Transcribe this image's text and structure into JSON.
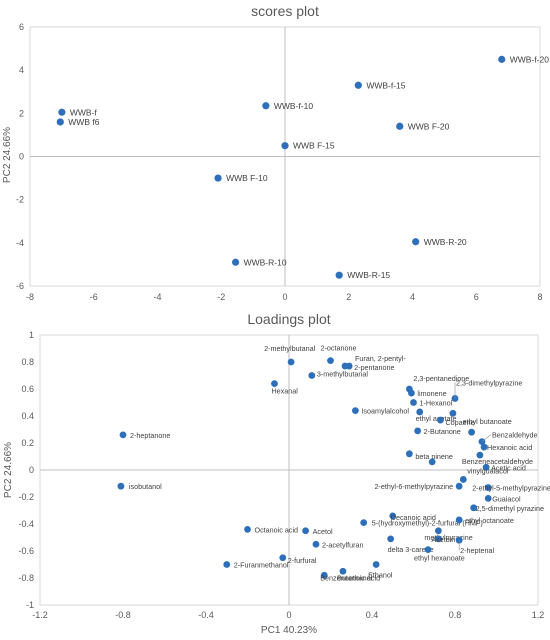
{
  "chart_data": [
    {
      "type": "scatter",
      "title": "scores plot",
      "xlabel": "",
      "ylabel": "PC2 24.66%",
      "xlim": [
        -8,
        8
      ],
      "ylim": [
        -6,
        6
      ],
      "xticks": [
        "-8",
        "-6",
        "-4",
        "-2",
        "0",
        "2",
        "4",
        "6",
        "8"
      ],
      "yticks": [
        "-6",
        "-4",
        "-2",
        "0",
        "2",
        "4",
        "6"
      ],
      "color": "#2e6fba",
      "points": [
        {
          "label": "WWB-f-20",
          "x": 6.8,
          "y": 4.5
        },
        {
          "label": "WWB-f-15",
          "x": 2.3,
          "y": 3.3
        },
        {
          "label": "WWB-f-10",
          "x": -0.6,
          "y": 2.35
        },
        {
          "label": "WWB-f",
          "x": -7.0,
          "y": 2.05
        },
        {
          "label": "WWB f6",
          "x": -7.05,
          "y": 1.6
        },
        {
          "label": "WWB F-20",
          "x": 3.6,
          "y": 1.4
        },
        {
          "label": "WWB F-15",
          "x": 0.0,
          "y": 0.5
        },
        {
          "label": "WWB F-10",
          "x": -2.1,
          "y": -1.0
        },
        {
          "label": "WWB-R-20",
          "x": 4.1,
          "y": -3.95
        },
        {
          "label": "WWB-R-10",
          "x": -1.55,
          "y": -4.9
        },
        {
          "label": "WWB-R-15",
          "x": 1.7,
          "y": -5.5
        }
      ]
    },
    {
      "type": "scatter",
      "title": "Loadings plot",
      "xlabel": "PC1 40.23%",
      "ylabel": "PC2 24.66%",
      "xlim": [
        -1.2,
        1.2
      ],
      "ylim": [
        -1,
        1
      ],
      "xticks": [
        "-1.2",
        "-0.8",
        "-0.4",
        "0",
        "0.4",
        "0.8",
        "1.2"
      ],
      "yticks": [
        "-1",
        "-0.8",
        "-0.6",
        "-0.4",
        "-0.2",
        "0",
        "0.2",
        "0.4",
        "0.6",
        "0.8",
        "1"
      ],
      "color": "#2e6fba",
      "points": [
        {
          "label": "2-methylbutanal",
          "x": 0.01,
          "y": 0.8
        },
        {
          "label": "2-octanone",
          "x": 0.2,
          "y": 0.81
        },
        {
          "label": "Furan, 2-pentyl-",
          "x": 0.27,
          "y": 0.77
        },
        {
          "label": "2-pentanone",
          "x": 0.29,
          "y": 0.77
        },
        {
          "label": "3-methylbutanal",
          "x": 0.11,
          "y": 0.7
        },
        {
          "label": "Hexanal",
          "x": -0.07,
          "y": 0.64
        },
        {
          "label": "2,3-pentanedione",
          "x": 0.58,
          "y": 0.6
        },
        {
          "label": "limonene",
          "x": 0.59,
          "y": 0.57
        },
        {
          "label": "2,3-dimethylpyrazine",
          "x": 0.8,
          "y": 0.53
        },
        {
          "label": "1-Hexanol",
          "x": 0.6,
          "y": 0.5
        },
        {
          "label": "Isoamylalcohol",
          "x": 0.32,
          "y": 0.44
        },
        {
          "label": "ethyl acetate",
          "x": 0.63,
          "y": 0.43
        },
        {
          "label": "",
          "x": 0.79,
          "y": 0.42
        },
        {
          "label": "Copaene",
          "x": 0.73,
          "y": 0.37
        },
        {
          "label": "2-Butanone",
          "x": 0.62,
          "y": 0.29
        },
        {
          "label": "ethyl butanoate",
          "x": 0.88,
          "y": 0.28
        },
        {
          "label": "2-heptanone",
          "x": -0.8,
          "y": 0.26
        },
        {
          "label": "Benzaldehyde",
          "x": 0.93,
          "y": 0.21
        },
        {
          "label": "Hexanoic acid",
          "x": 0.94,
          "y": 0.17
        },
        {
          "label": "beta pinene",
          "x": 0.58,
          "y": 0.12
        },
        {
          "label": "Benzeneacetaldehyde",
          "x": 0.92,
          "y": 0.11
        },
        {
          "label": "",
          "x": 0.69,
          "y": 0.06
        },
        {
          "label": "Acetic acid",
          "x": 0.95,
          "y": 0.02
        },
        {
          "label": "vinylguaiacol",
          "x": 0.84,
          "y": -0.07
        },
        {
          "label": "2-ethyl-6-methylpyrazine",
          "x": 0.82,
          "y": -0.12
        },
        {
          "label": "2-ethyl-5-methylpyrazine",
          "x": 0.96,
          "y": -0.13
        },
        {
          "label": "isobutanol",
          "x": -0.81,
          "y": -0.12
        },
        {
          "label": "Guaiacol",
          "x": 0.96,
          "y": -0.21
        },
        {
          "label": "2,5-dimethyl pyrazine",
          "x": 0.89,
          "y": -0.28
        },
        {
          "label": "Decanoic acid",
          "x": 0.5,
          "y": -0.34
        },
        {
          "label": "5-(hydroxymethyl)-2-furfural (HMF)",
          "x": 0.36,
          "y": -0.39
        },
        {
          "label": "ethyl octanoate",
          "x": 0.82,
          "y": -0.37
        },
        {
          "label": "Octanoic acid",
          "x": -0.2,
          "y": -0.44
        },
        {
          "label": "Acetol",
          "x": 0.08,
          "y": -0.45
        },
        {
          "label": "methylpyrazine",
          "x": 0.72,
          "y": -0.45
        },
        {
          "label": "Acetoin",
          "x": 0.72,
          "y": -0.51
        },
        {
          "label": "2-heptenal",
          "x": 0.82,
          "y": -0.52
        },
        {
          "label": "delta 3-carene",
          "x": 0.49,
          "y": -0.51
        },
        {
          "label": "2-acetylfuran",
          "x": 0.13,
          "y": -0.55
        },
        {
          "label": "ethyl hexanoate",
          "x": 0.67,
          "y": -0.59
        },
        {
          "label": "2-furfural",
          "x": -0.03,
          "y": -0.65
        },
        {
          "label": "2-Furanmethanol",
          "x": -0.3,
          "y": -0.7
        },
        {
          "label": "Ethanol",
          "x": 0.42,
          "y": -0.7
        },
        {
          "label": "Butanoic acid",
          "x": 0.26,
          "y": -0.75
        },
        {
          "label": "Benzeneethanol",
          "x": 0.17,
          "y": -0.78
        }
      ]
    }
  ]
}
